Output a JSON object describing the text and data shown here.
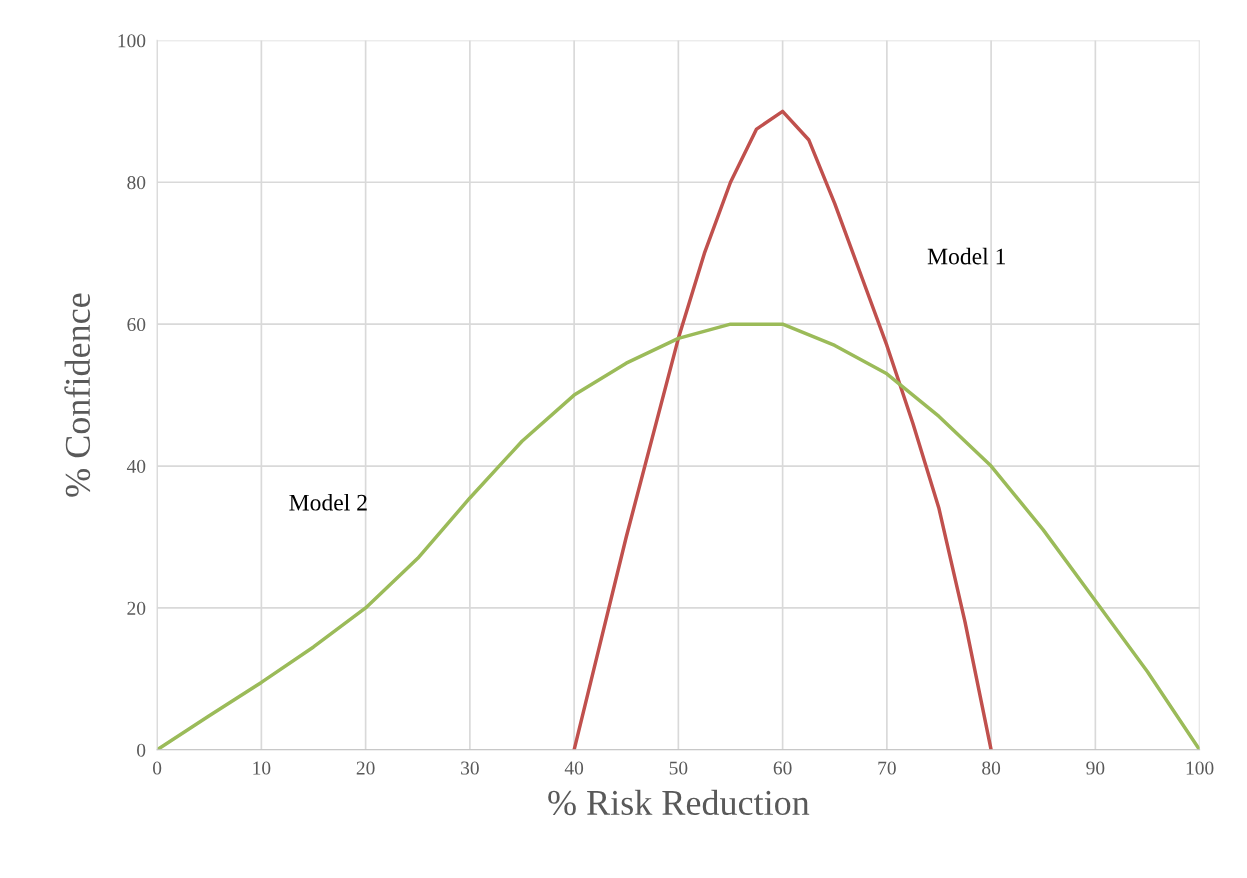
{
  "chart_data": {
    "type": "line",
    "xlabel": "% Risk Reduction",
    "ylabel": "% Confidence",
    "series": [
      {
        "name": "Model 1",
        "color": "#c0504d",
        "x": [
          40,
          42.5,
          45,
          47.5,
          50,
          52.5,
          55,
          57.5,
          60,
          62.5,
          65,
          67.5,
          70,
          72.5,
          75,
          77.5,
          80
        ],
        "values": [
          0,
          15,
          30,
          44,
          58,
          70,
          80,
          87.5,
          90,
          86,
          77,
          67,
          57,
          46,
          34,
          18,
          0
        ]
      },
      {
        "name": "Model 2",
        "color": "#9bbb59",
        "x": [
          0,
          5,
          10,
          15,
          20,
          25,
          30,
          35,
          40,
          45,
          50,
          55,
          60,
          65,
          70,
          75,
          80,
          85,
          90,
          95,
          100
        ],
        "values": [
          0,
          4.8,
          9.5,
          14.5,
          20,
          27,
          35.5,
          43.5,
          50,
          54.5,
          58,
          60,
          60,
          57,
          53,
          47,
          40,
          31,
          21,
          11,
          0
        ]
      }
    ],
    "xlim": [
      0,
      100
    ],
    "ylim": [
      0,
      100
    ],
    "xticks": [
      0,
      10,
      20,
      30,
      40,
      50,
      60,
      70,
      80,
      90,
      100
    ],
    "yticks": [
      0,
      20,
      40,
      60,
      80,
      100
    ],
    "grid": true,
    "legend": false,
    "marker": "none",
    "line_style": "solid"
  }
}
